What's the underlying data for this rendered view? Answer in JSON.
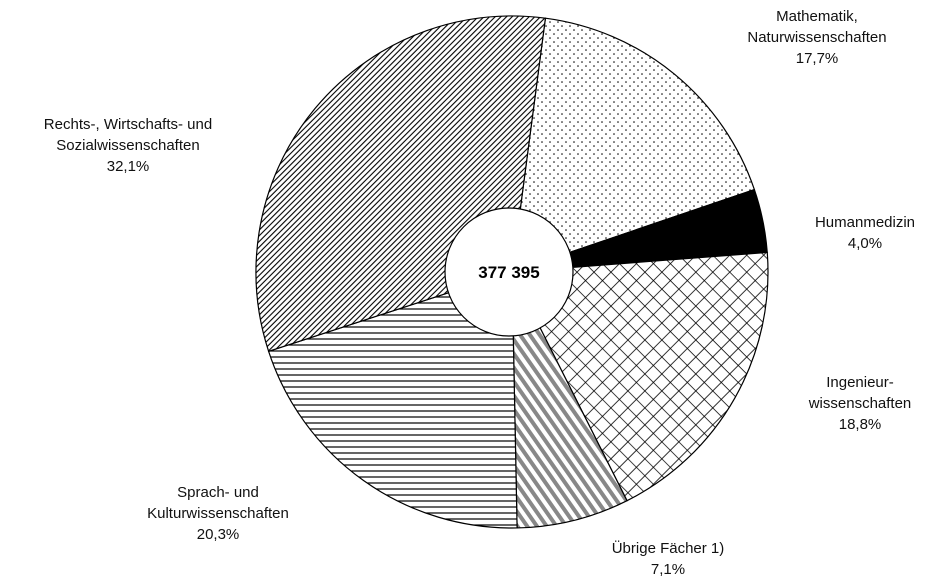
{
  "chart_data": {
    "type": "pie",
    "center_text": "377 395",
    "categories": [
      "Mathematik,\nNaturwissenschaften",
      "Humanmedizin",
      "Ingenieur-\nwissenschaften",
      "Übrige Fächer 1)",
      "Sprach- und\nKulturwissenschaften",
      "Rechts-, Wirtschafts- und\nSozialwissenschaften"
    ],
    "values": [
      17.7,
      4.0,
      18.8,
      7.1,
      20.3,
      32.1
    ],
    "value_labels": [
      "17,7%",
      "4,0%",
      "18,8%",
      "7,1%",
      "20,3%",
      "32,1%"
    ]
  }
}
